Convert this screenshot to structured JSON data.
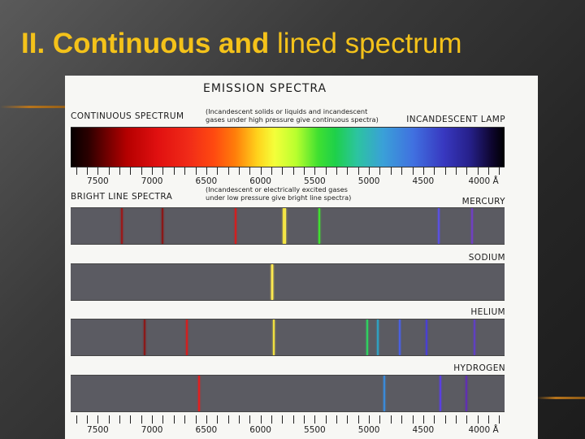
{
  "slide": {
    "title_bold": "II. Continuous and",
    "title_rest": " lined spectrum",
    "title_color": "#f4c21a"
  },
  "figure": {
    "title": "EMISSION SPECTRA",
    "continuous": {
      "label": "CONTINUOUS SPECTRUM",
      "note_line1": "(Incandescent solids or liquids and incandescent",
      "note_line2": "gases under high pressure give continuous spectra)",
      "source": "INCANDESCENT LAMP"
    },
    "bright_line": {
      "label": "BRIGHT LINE SPECTRA",
      "note_line1": "(Incandescent or electrically excited gases",
      "note_line2": "under low pressure give bright line spectra)"
    },
    "wavelength_labels": [
      "7500",
      "7000",
      "6500",
      "6000",
      "5500",
      "5000",
      "4500",
      "4000 Å"
    ],
    "wavelength_values": [
      7500,
      7000,
      6500,
      6000,
      5500,
      5000,
      4500,
      4000
    ],
    "wavelength_range": [
      7750,
      3750
    ],
    "tick_values": [
      7700,
      7600,
      7500,
      7400,
      7300,
      7200,
      7100,
      7000,
      6900,
      6800,
      6700,
      6600,
      6500,
      6400,
      6300,
      6200,
      6100,
      6000,
      5900,
      5800,
      5700,
      5600,
      5500,
      5400,
      5300,
      5200,
      5100,
      5000,
      4900,
      4800,
      4700,
      4600,
      4500,
      4400,
      4300,
      4200,
      4100,
      4000,
      3900,
      3800
    ],
    "elements": [
      {
        "name": "MERCURY",
        "lines": [
          {
            "wl": 7280,
            "color": "#9a1a1a"
          },
          {
            "wl": 6900,
            "color": "#8a1818"
          },
          {
            "wl": 6230,
            "color": "#d02020"
          },
          {
            "wl": 5790,
            "color": "#f0e040"
          },
          {
            "wl": 5770,
            "color": "#f4e84a"
          },
          {
            "wl": 5460,
            "color": "#40e030"
          },
          {
            "wl": 4358,
            "color": "#5a50e0"
          },
          {
            "wl": 4047,
            "color": "#7040c0"
          }
        ]
      },
      {
        "name": "SODIUM",
        "lines": [
          {
            "wl": 5896,
            "color": "#ffe040"
          },
          {
            "wl": 5890,
            "color": "#ffea50"
          }
        ]
      },
      {
        "name": "HELIUM",
        "lines": [
          {
            "wl": 7065,
            "color": "#8a1a1a"
          },
          {
            "wl": 6678,
            "color": "#d02020"
          },
          {
            "wl": 5876,
            "color": "#f0e040"
          },
          {
            "wl": 5016,
            "color": "#30d060"
          },
          {
            "wl": 4922,
            "color": "#30a0c0"
          },
          {
            "wl": 4713,
            "color": "#4a60e0"
          },
          {
            "wl": 4471,
            "color": "#4a40d0"
          },
          {
            "wl": 4026,
            "color": "#6040c0"
          }
        ]
      },
      {
        "name": "HYDROGEN",
        "lines": [
          {
            "wl": 6563,
            "color": "#e02020"
          },
          {
            "wl": 4861,
            "color": "#3a8ad8"
          },
          {
            "wl": 4340,
            "color": "#5a40e0"
          },
          {
            "wl": 4102,
            "color": "#6030b0"
          }
        ]
      }
    ]
  }
}
